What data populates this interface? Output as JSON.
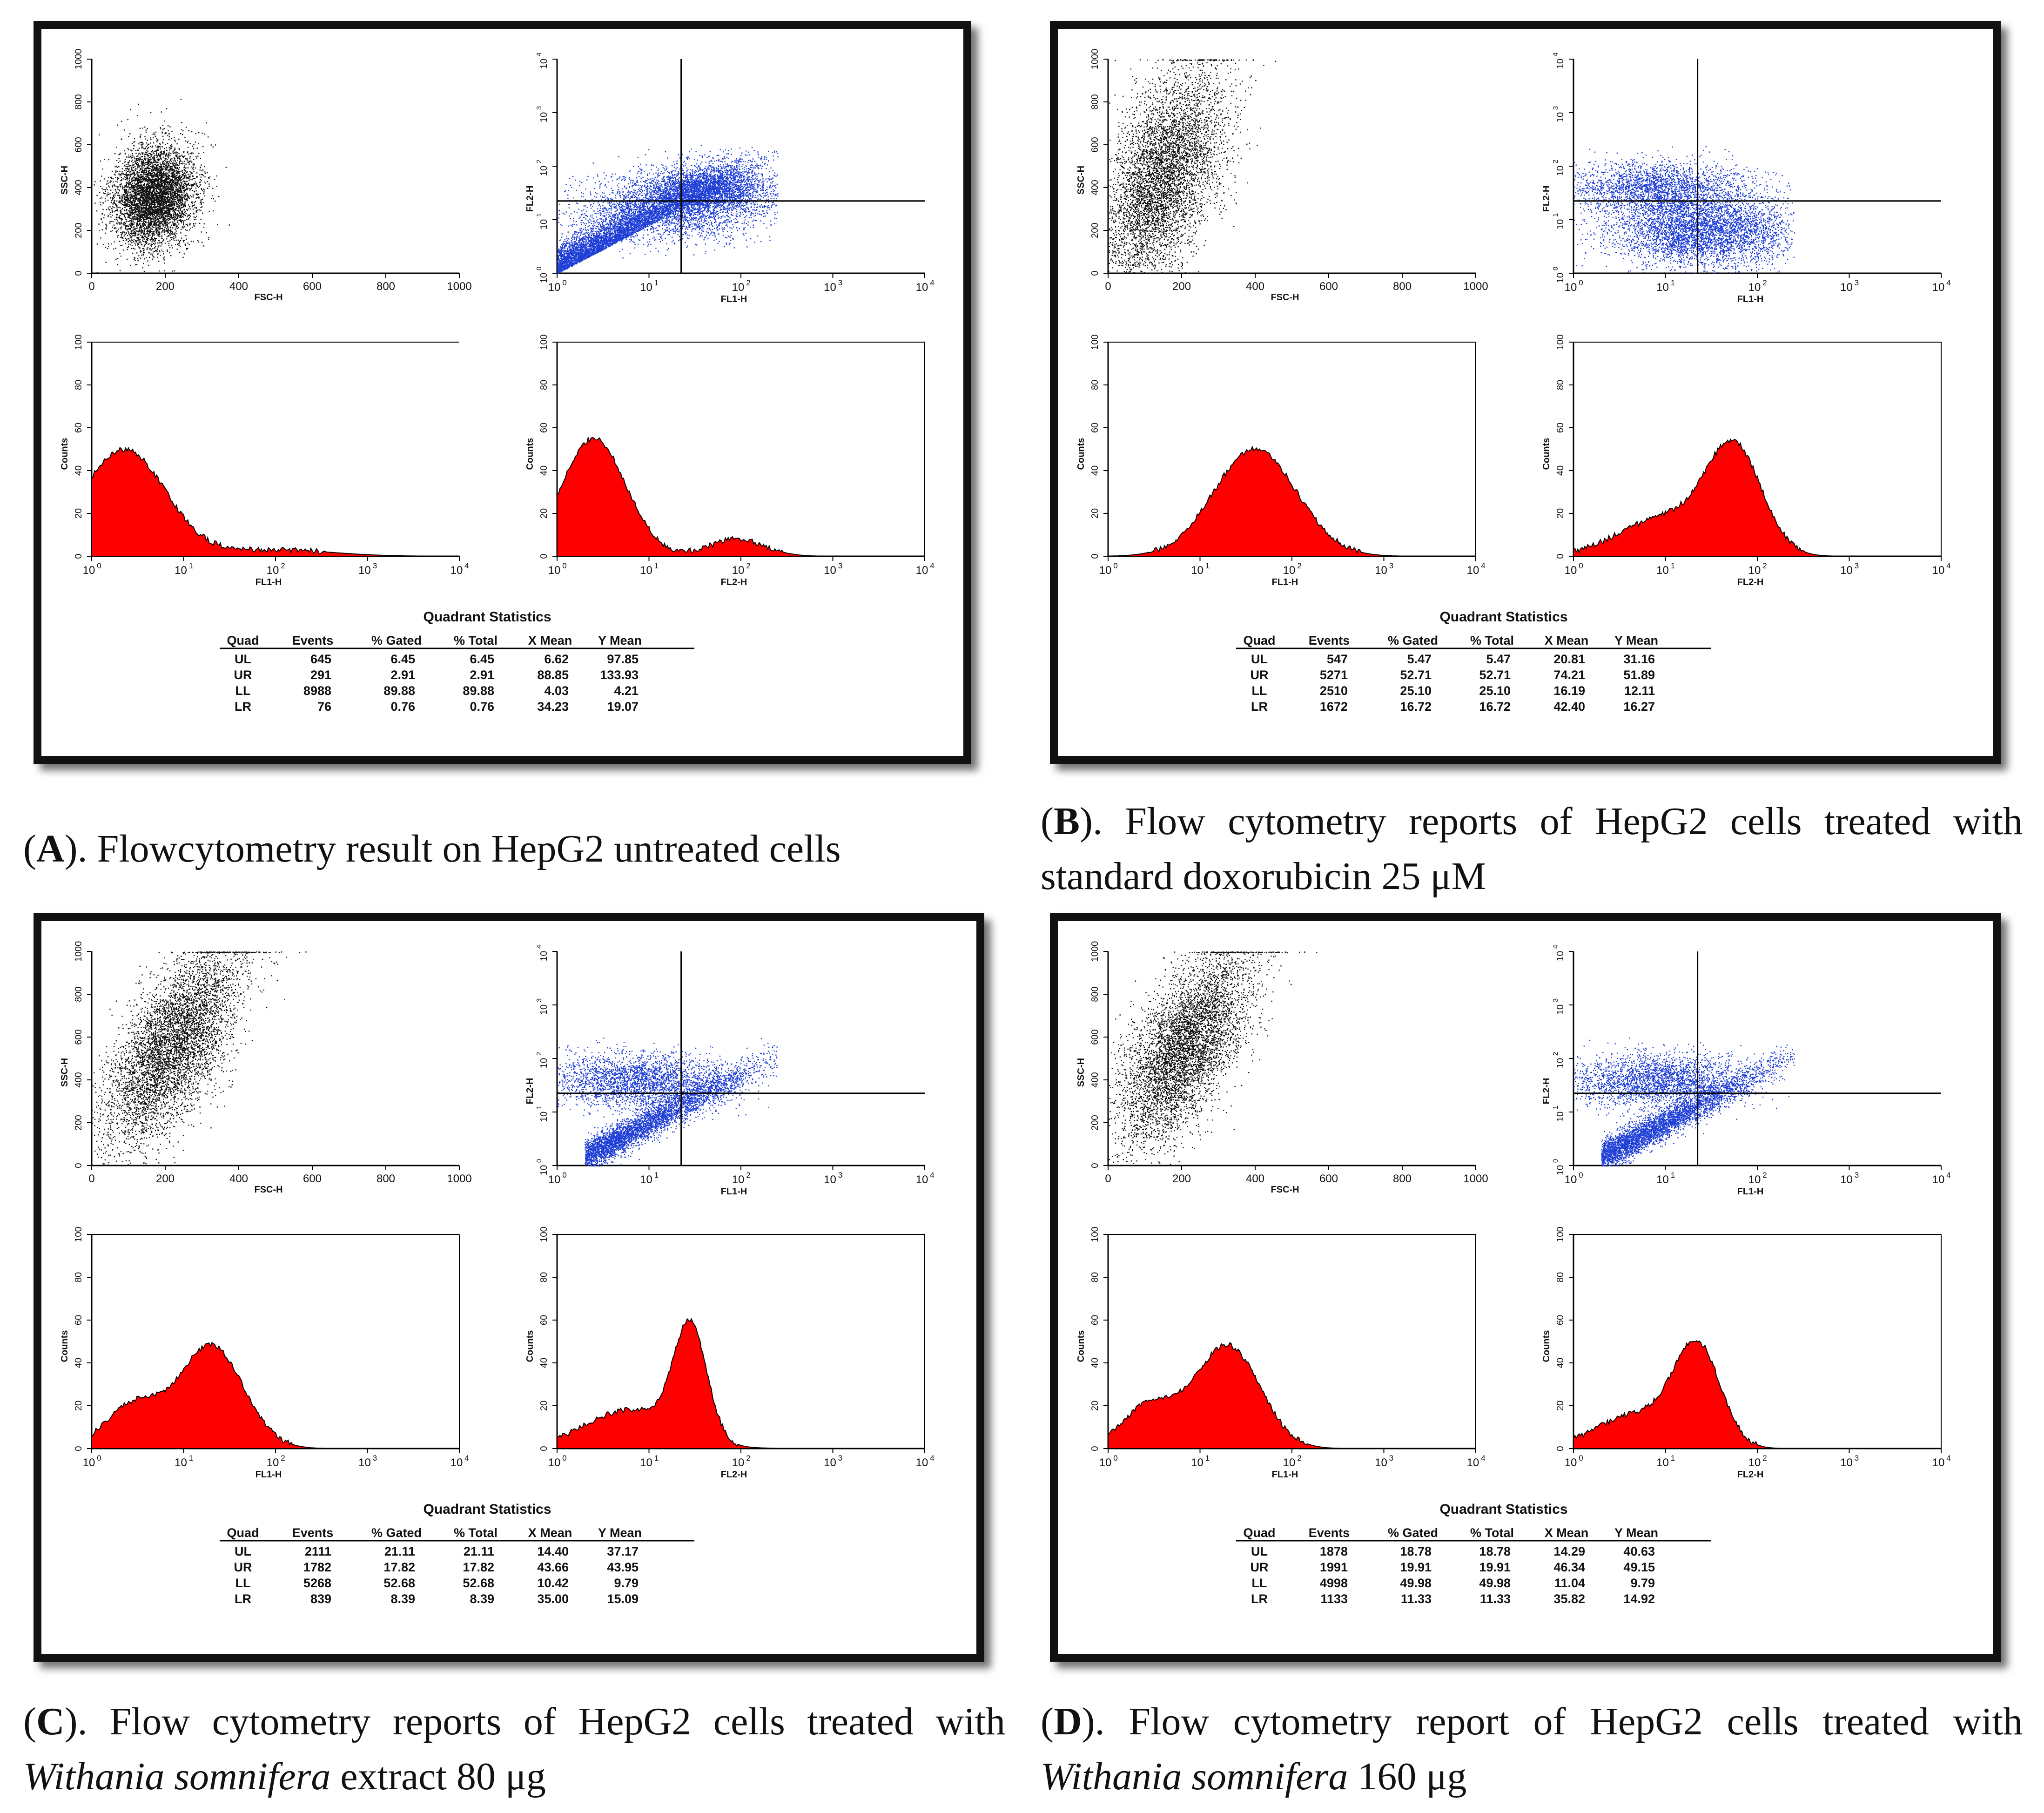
{
  "colors": {
    "scatter_dots": "#111111",
    "fl_dots": "#1f3fd6",
    "histogram_fill": "#ff0000",
    "line": "#000000"
  },
  "axis_labels": {
    "ssc": "SSC-H",
    "fsc": "FSC-H",
    "fl1": "FL1-H",
    "fl2": "FL2-H",
    "counts": "Counts"
  },
  "ticks": {
    "linear": [
      "0",
      "200",
      "400",
      "600",
      "800",
      "1000"
    ],
    "counts": [
      "0",
      "20",
      "40",
      "60",
      "80",
      "100"
    ],
    "log_base": "10",
    "log_exp": [
      "0",
      "1",
      "2",
      "3",
      "4"
    ]
  },
  "stats_title": "Quadrant Statistics",
  "stats_headers": [
    "Quad",
    "Events",
    "% Gated",
    "% Total",
    "X Mean",
    "Y Mean"
  ],
  "chart_data": [
    {
      "type": "scatter",
      "title": "Flow cytometry panel A",
      "caption": {
        "letter": "A",
        "pre": "(",
        "post": "). Flowcytometry result on HepG2 untreated cells",
        "italic": "",
        "tail": ""
      },
      "fsc_ssc": {
        "x_center": 170,
        "y_center": 360,
        "x_spread": 55,
        "y_spread": 120,
        "tilt": 0.6,
        "xlim": [
          0,
          1000
        ],
        "ylim": [
          0,
          1000
        ]
      },
      "fl1_fl2": {
        "quad_x_decade": 1.35,
        "quad_y_decade": 1.35,
        "xlim_decades": [
          0,
          4
        ],
        "ylim_decades": [
          0,
          4
        ]
      },
      "hist_fl1": {
        "peaks": [
          {
            "mu": 0.35,
            "sd": 0.45,
            "h": 50
          },
          {
            "mu": 2.0,
            "sd": 0.6,
            "h": 3
          }
        ],
        "ylim": [
          0,
          100
        ]
      },
      "hist_fl2": {
        "peaks": [
          {
            "mu": 0.4,
            "sd": 0.35,
            "h": 55
          },
          {
            "mu": 1.95,
            "sd": 0.3,
            "h": 8
          }
        ],
        "ylim": [
          0,
          100
        ]
      },
      "stats": [
        [
          "UL",
          "645",
          "6.45",
          "6.45",
          "6.62",
          "97.85"
        ],
        [
          "UR",
          "291",
          "2.91",
          "2.91",
          "88.85",
          "133.93"
        ],
        [
          "LL",
          "8988",
          "89.88",
          "89.88",
          "4.03",
          "4.21"
        ],
        [
          "LR",
          "76",
          "0.76",
          "0.76",
          "34.23",
          "19.07"
        ]
      ]
    },
    {
      "type": "scatter",
      "title": "Flow cytometry panel B",
      "caption": {
        "letter": "B",
        "pre": "(",
        "post": "). Flow cytometry reports of HepG2 cells treated with standard doxorubicin 25 μM",
        "italic": "",
        "tail": ""
      },
      "fsc_ssc": {
        "x_center": 150,
        "y_center": 450,
        "x_spread": 70,
        "y_spread": 250,
        "tilt": 1.4,
        "xlim": [
          0,
          1000
        ],
        "ylim": [
          0,
          1000
        ]
      },
      "fl1_fl2": {
        "quad_x_decade": 1.35,
        "quad_y_decade": 1.35,
        "xlim_decades": [
          0,
          4
        ],
        "ylim_decades": [
          0,
          4
        ]
      },
      "hist_fl1": {
        "peaks": [
          {
            "mu": 1.6,
            "sd": 0.45,
            "h": 50
          }
        ],
        "ylim": [
          0,
          100
        ]
      },
      "hist_fl2": {
        "peaks": [
          {
            "mu": 1.75,
            "sd": 0.3,
            "h": 48
          },
          {
            "mu": 1.0,
            "sd": 0.5,
            "h": 18
          }
        ],
        "ylim": [
          0,
          100
        ]
      },
      "stats": [
        [
          "UL",
          "547",
          "5.47",
          "5.47",
          "20.81",
          "31.16"
        ],
        [
          "UR",
          "5271",
          "52.71",
          "52.71",
          "74.21",
          "51.89"
        ],
        [
          "LL",
          "2510",
          "25.10",
          "25.10",
          "16.19",
          "12.11"
        ],
        [
          "LR",
          "1672",
          "16.72",
          "16.72",
          "42.40",
          "16.27"
        ]
      ]
    },
    {
      "type": "scatter",
      "title": "Flow cytometry panel C",
      "caption": {
        "letter": "C",
        "pre": "(",
        "post": "). Flow cytometry reports of HepG2 cells treated with ",
        "italic": "Withania somnifera",
        "tail": " extract 80 μg"
      },
      "fsc_ssc": {
        "x_center": 220,
        "y_center": 560,
        "x_spread": 70,
        "y_spread": 230,
        "tilt": 2.2,
        "xlim": [
          0,
          1000
        ],
        "ylim": [
          0,
          1000
        ]
      },
      "fl1_fl2": {
        "quad_x_decade": 1.35,
        "quad_y_decade": 1.35,
        "xlim_decades": [
          0,
          4
        ],
        "ylim_decades": [
          0,
          4
        ]
      },
      "hist_fl1": {
        "peaks": [
          {
            "mu": 1.3,
            "sd": 0.35,
            "h": 48
          },
          {
            "mu": 0.45,
            "sd": 0.3,
            "h": 20
          }
        ],
        "ylim": [
          0,
          100
        ]
      },
      "hist_fl2": {
        "peaks": [
          {
            "mu": 1.45,
            "sd": 0.18,
            "h": 52
          },
          {
            "mu": 0.8,
            "sd": 0.5,
            "h": 18
          }
        ],
        "ylim": [
          0,
          100
        ]
      },
      "stats": [
        [
          "UL",
          "2111",
          "21.11",
          "21.11",
          "14.40",
          "37.17"
        ],
        [
          "UR",
          "1782",
          "17.82",
          "17.82",
          "43.66",
          "43.95"
        ],
        [
          "LL",
          "5268",
          "52.68",
          "52.68",
          "10.42",
          "9.79"
        ],
        [
          "LR",
          "839",
          "8.39",
          "8.39",
          "35.00",
          "15.09"
        ]
      ]
    },
    {
      "type": "scatter",
      "title": "Flow cytometry panel D",
      "caption": {
        "letter": "D",
        "pre": "(",
        "post": "). Flow cytometry report of HepG2 cells treated with ",
        "italic": "Withania somnifera",
        "tail": " 160 μg"
      },
      "fsc_ssc": {
        "x_center": 210,
        "y_center": 560,
        "x_spread": 70,
        "y_spread": 230,
        "tilt": 2.1,
        "xlim": [
          0,
          1000
        ],
        "ylim": [
          0,
          1000
        ]
      },
      "fl1_fl2": {
        "quad_x_decade": 1.35,
        "quad_y_decade": 1.35,
        "xlim_decades": [
          0,
          4
        ],
        "ylim_decades": [
          0,
          4
        ]
      },
      "hist_fl1": {
        "peaks": [
          {
            "mu": 1.3,
            "sd": 0.35,
            "h": 48
          },
          {
            "mu": 0.45,
            "sd": 0.3,
            "h": 20
          }
        ],
        "ylim": [
          0,
          100
        ]
      },
      "hist_fl2": {
        "peaks": [
          {
            "mu": 1.35,
            "sd": 0.25,
            "h": 45
          },
          {
            "mu": 0.7,
            "sd": 0.45,
            "h": 16
          }
        ],
        "ylim": [
          0,
          100
        ]
      },
      "stats": [
        [
          "UL",
          "1878",
          "18.78",
          "18.78",
          "14.29",
          "40.63"
        ],
        [
          "UR",
          "1991",
          "19.91",
          "19.91",
          "46.34",
          "49.15"
        ],
        [
          "LL",
          "4998",
          "49.98",
          "49.98",
          "11.04",
          "9.79"
        ],
        [
          "LR",
          "1133",
          "11.33",
          "11.33",
          "35.82",
          "14.92"
        ]
      ]
    }
  ]
}
